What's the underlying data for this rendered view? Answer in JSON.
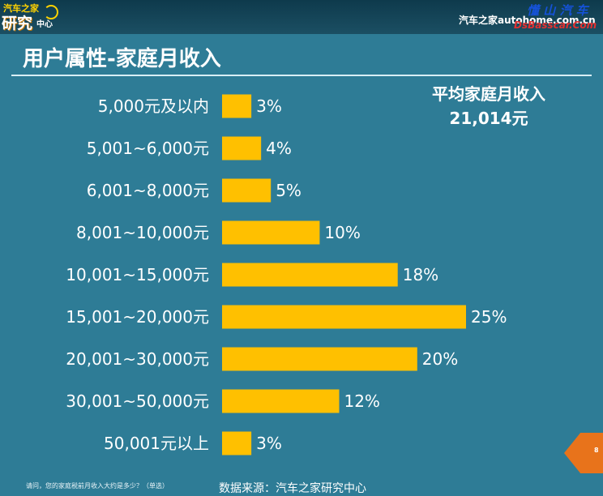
{
  "header": {
    "logo": {
      "line1": "汽车之家",
      "line2": "研究",
      "line3": "中心"
    },
    "site": "汽车之家autohome.com.cn",
    "watermark_cn": "懂 山 汽 车",
    "watermark_en": "DsBasscar.Com"
  },
  "title": "用户属性-家庭月收入",
  "average": {
    "label": "平均家庭月收入",
    "value": "21,014元"
  },
  "chart_data": {
    "type": "bar",
    "orientation": "horizontal",
    "categories": [
      "5,000元及以内",
      "5,001~6,000元",
      "6,001~8,000元",
      "8,001~10,000元",
      "10,001~15,000元",
      "15,001~20,000元",
      "20,001~30,000元",
      "30,001~50,000元",
      "50,001元以上"
    ],
    "values": [
      3,
      4,
      5,
      10,
      18,
      25,
      20,
      12,
      3
    ],
    "value_labels": [
      "3%",
      "4%",
      "5%",
      "10%",
      "18%",
      "25%",
      "20%",
      "12%",
      "3%"
    ],
    "unit": "%",
    "bar_color": "#ffc000",
    "xlim": [
      0,
      25
    ]
  },
  "footer": {
    "note": "请问，您的家庭税前月收入大约是多少？（单选）",
    "source": "数据来源：汽车之家研究中心",
    "page": "8"
  },
  "colors": {
    "background": "#2e7c96",
    "accent": "#ffc000",
    "page_tab": "#e8731b"
  }
}
